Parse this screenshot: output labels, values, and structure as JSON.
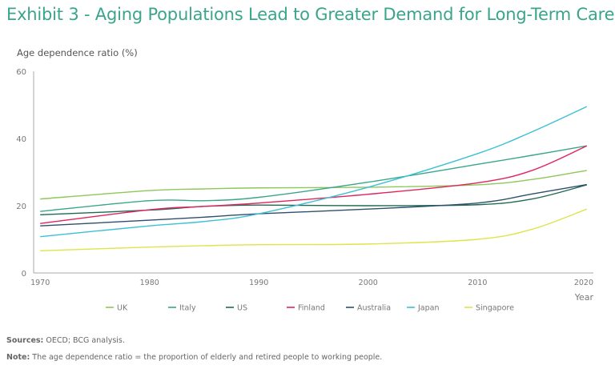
{
  "title": "Exhibit 3 - Aging Populations Lead to Greater Demand for Long-Term Care",
  "footer": {
    "sources_label": "Sources:",
    "sources_text": "OECD; BCG analysis.",
    "note_label": "Note:",
    "note_text": "The age dependence ratio = the proportion of elderly and retired people to working people."
  },
  "chart_data": {
    "type": "line",
    "title": "Exhibit 3 - Aging Populations Lead to Greater Demand for Long-Term Care",
    "xlabel": "Year",
    "ylabel": "Age dependence ratio (%)",
    "xlim": [
      1969.4,
      2020.6
    ],
    "ylim": [
      0,
      60
    ],
    "xticks": [
      1970,
      1980,
      1990,
      2000,
      2010,
      2020
    ],
    "yticks": [
      0,
      20,
      40,
      60
    ],
    "grid": false,
    "legend": "bottom",
    "x": [
      1970,
      1980,
      1985,
      1990,
      2000,
      2010,
      2015,
      2020
    ],
    "series": [
      {
        "name": "UK",
        "color": "#8dc85a",
        "values": [
          22,
          24.5,
          25,
          25.3,
          25.5,
          26.2,
          27.8,
          30.5
        ]
      },
      {
        "name": "Italy",
        "color": "#3aa58b",
        "values": [
          18.3,
          21.5,
          21.5,
          22.5,
          27,
          32.3,
          35,
          37.8
        ]
      },
      {
        "name": "US",
        "color": "#1f6b52",
        "values": [
          17.3,
          18.7,
          19.8,
          20.2,
          20,
          20.3,
          22,
          26.2
        ]
      },
      {
        "name": "Finland",
        "color": "#e0245e",
        "values": [
          14.7,
          18.8,
          19.8,
          20.8,
          23.4,
          26.8,
          30.5,
          37.8
        ]
      },
      {
        "name": "Australia",
        "color": "#2e4f6e",
        "values": [
          14,
          15.7,
          16.6,
          17.6,
          19,
          20.8,
          23.5,
          26.3
        ]
      },
      {
        "name": "Japan",
        "color": "#3cc0d6",
        "values": [
          10.8,
          14,
          15.3,
          17.6,
          25.5,
          35.5,
          42,
          49.5
        ]
      },
      {
        "name": "Singapore",
        "color": "#e0e34a",
        "values": [
          6.6,
          7.7,
          8.1,
          8.4,
          8.6,
          10,
          13,
          19
        ]
      }
    ]
  }
}
